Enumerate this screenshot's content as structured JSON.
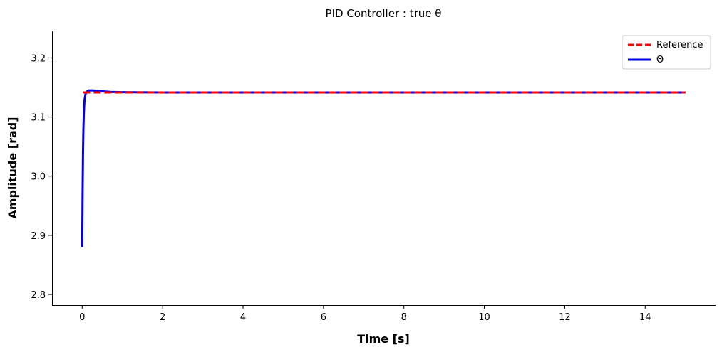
{
  "chart_data": {
    "type": "line",
    "title": "PID Controller : true θ",
    "xlabel": "Time [s]",
    "ylabel": "Amplitude [rad]",
    "xlim": [
      -0.75,
      15.75
    ],
    "ylim": [
      2.782,
      3.245
    ],
    "xticks": [
      0,
      2,
      4,
      6,
      8,
      10,
      12,
      14
    ],
    "yticks": [
      2.8,
      2.9,
      3.0,
      3.1,
      3.2
    ],
    "ytick_labels": [
      "2.8",
      "2.9",
      "3.0",
      "3.1",
      "3.2"
    ],
    "grid": false,
    "legend_position": "top-right",
    "series": [
      {
        "name": "Reference",
        "style": "dashed",
        "color": "#ff0000",
        "x": [
          0.02,
          15.0
        ],
        "y": [
          3.1416,
          3.1416
        ]
      },
      {
        "name": "Θ",
        "style": "solid",
        "color": "#0000ee",
        "x": [
          0.0,
          0.01,
          0.02,
          0.03,
          0.04,
          0.05,
          0.06,
          0.08,
          0.1,
          0.13,
          0.17,
          0.25,
          0.4,
          0.7,
          1.0,
          2.0,
          5.0,
          10.0,
          15.0
        ],
        "y": [
          2.88,
          2.97,
          3.04,
          3.08,
          3.105,
          3.12,
          3.13,
          3.138,
          3.142,
          3.144,
          3.145,
          3.145,
          3.144,
          3.1425,
          3.142,
          3.1416,
          3.1416,
          3.1416,
          3.1416
        ]
      }
    ]
  }
}
